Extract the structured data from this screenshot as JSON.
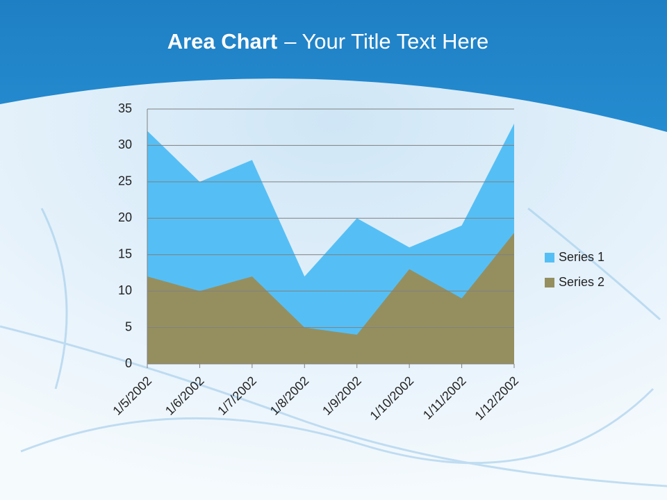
{
  "chart_data": {
    "type": "area",
    "title_parts": [
      "Area Chart",
      "– Your Title Text Here"
    ],
    "categories": [
      "1/5/2002",
      "1/6/2002",
      "1/7/2002",
      "1/8/2002",
      "1/9/2002",
      "1/10/2002",
      "1/11/2002",
      "1/12/2002"
    ],
    "series": [
      {
        "name": "Series 1",
        "color": "#55bff5",
        "values": [
          32,
          25,
          28,
          12,
          20,
          16,
          19,
          33
        ]
      },
      {
        "name": "Series 2",
        "color": "#958f60",
        "values": [
          12,
          10,
          12,
          5,
          4,
          13,
          9,
          18
        ]
      }
    ],
    "ylim": [
      0,
      35
    ],
    "yticks": [
      0,
      5,
      10,
      15,
      20,
      25,
      30,
      35
    ],
    "grid": true,
    "legend": "right"
  }
}
